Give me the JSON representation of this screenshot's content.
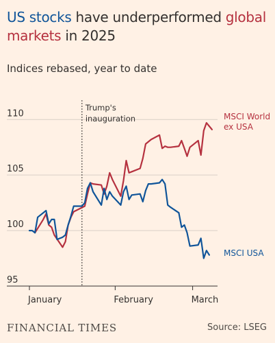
{
  "title": {
    "part1": "US stocks",
    "part2": " have underperformed ",
    "part3": "global markets",
    "part4": " in 2025"
  },
  "subtitle": "Indices rebased, year to date",
  "colors": {
    "background": "#fff1e5",
    "us": "#0f5499",
    "world": "#b5313f",
    "grid": "#d9cfc6",
    "axis": "#33302e"
  },
  "footer": {
    "logo": "FINANCIAL TIMES",
    "source": "Source: LSEG"
  },
  "chart_data": {
    "type": "line",
    "x_axis": {
      "tick_labels": [
        "January",
        "February",
        "March"
      ],
      "tick_days": [
        1,
        32,
        60
      ],
      "range_days": [
        1,
        69
      ]
    },
    "y_axis": {
      "ticks": [
        95,
        100,
        105,
        110
      ],
      "range": [
        95,
        111.5
      ]
    },
    "grid": true,
    "annotation": {
      "line1": "Trump's",
      "line2": "inauguration",
      "day": 20
    },
    "series": [
      {
        "name": "MSCI World ex USA",
        "label_line1": "MSCI World",
        "label_line2": "ex USA",
        "color": "#b5313f",
        "x": [
          3,
          6,
          7,
          8,
          9,
          10,
          13,
          14,
          15,
          16,
          17,
          21,
          22,
          23,
          24,
          27,
          28,
          29,
          30,
          31,
          34,
          35,
          36,
          37,
          38,
          41,
          42,
          43,
          44,
          45,
          48,
          49,
          50,
          51,
          52,
          55,
          56,
          57,
          58,
          59,
          62,
          63,
          64,
          65,
          66,
          67
        ],
        "y": [
          99.8,
          101.0,
          101.5,
          100.5,
          100.3,
          99.6,
          98.5,
          99.0,
          100.5,
          101.2,
          101.7,
          102.2,
          103.3,
          104.3,
          104.2,
          104.1,
          103.3,
          104.0,
          105.2,
          104.6,
          103.1,
          104.5,
          106.3,
          105.2,
          105.3,
          105.6,
          106.5,
          107.8,
          108.0,
          108.2,
          108.6,
          107.4,
          107.6,
          107.5,
          107.5,
          107.6,
          108.1,
          107.4,
          106.7,
          107.5,
          108.1,
          106.8,
          109.0,
          109.7,
          109.4,
          109.1
        ]
      },
      {
        "name": "MSCI USA",
        "label_line1": "MSCI USA",
        "color": "#0f5499",
        "x": [
          1,
          2,
          3,
          4,
          7,
          8,
          9,
          10,
          11,
          13,
          14,
          15,
          16,
          17,
          20,
          21,
          22,
          23,
          24,
          27,
          28,
          29,
          30,
          31,
          34,
          35,
          36,
          37,
          38,
          41,
          42,
          43,
          44,
          45,
          48,
          49,
          50,
          51,
          52,
          55,
          56,
          57,
          58,
          59,
          62,
          63,
          64,
          65,
          66
        ],
        "y": [
          100.0,
          100.0,
          99.8,
          101.2,
          101.8,
          100.6,
          101.0,
          101.0,
          99.2,
          99.4,
          99.6,
          100.5,
          101.3,
          102.2,
          102.2,
          102.5,
          103.8,
          104.3,
          103.5,
          102.3,
          103.8,
          102.8,
          103.5,
          103.1,
          102.3,
          103.5,
          104.0,
          102.8,
          103.2,
          103.3,
          102.6,
          103.6,
          104.2,
          104.2,
          104.3,
          104.6,
          104.2,
          102.3,
          102.1,
          101.6,
          100.3,
          100.5,
          99.8,
          98.6,
          98.7,
          99.3,
          97.5,
          98.2,
          97.8
        ]
      }
    ]
  }
}
